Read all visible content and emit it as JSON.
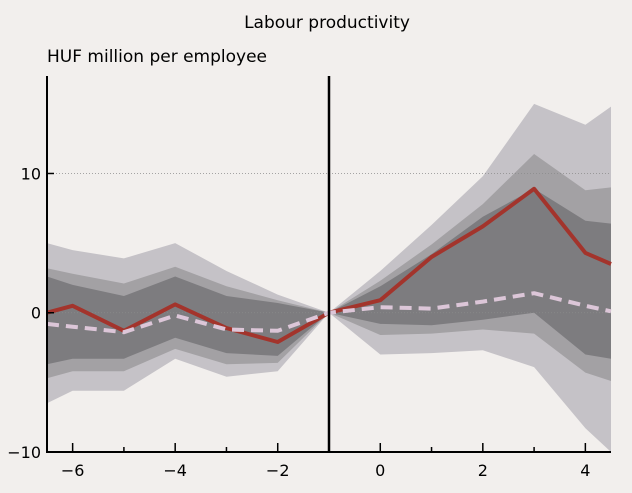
{
  "chart_data": {
    "type": "area",
    "title": "Labour productivity",
    "ylabel": "HUF million per employee",
    "xlabel": "",
    "xlim": [
      -6.5,
      4.5
    ],
    "ylim": [
      -10,
      17
    ],
    "x_ticks": [
      -6,
      -4,
      -2,
      0,
      2,
      4
    ],
    "y_ticks": [
      -10,
      0,
      10
    ],
    "gridlines_y": [
      10,
      0
    ],
    "event_line_x": -1,
    "x": [
      -6.5,
      -6,
      -5,
      -4,
      -3,
      -2,
      -1,
      0,
      1,
      2,
      3,
      4,
      4.5
    ],
    "bands": [
      {
        "lower": [
          -6.5,
          -5.6,
          -5.6,
          -3.3,
          -4.6,
          -4.2,
          0,
          -3.0,
          -2.9,
          -2.7,
          -3.9,
          -8.3,
          -10.0
        ],
        "upper": [
          5.0,
          4.5,
          3.9,
          5.0,
          3.0,
          1.3,
          0,
          3.0,
          6.3,
          9.8,
          15.0,
          13.5,
          14.8
        ]
      },
      {
        "lower": [
          -4.7,
          -4.2,
          -4.2,
          -2.6,
          -3.7,
          -3.6,
          0,
          -1.6,
          -1.5,
          -1.2,
          -1.5,
          -4.3,
          -4.9
        ],
        "upper": [
          3.2,
          2.8,
          2.1,
          3.3,
          1.9,
          0.9,
          0,
          2.3,
          4.9,
          7.8,
          11.4,
          8.8,
          9.0
        ]
      },
      {
        "lower": [
          -3.7,
          -3.3,
          -3.3,
          -1.8,
          -2.9,
          -3.1,
          0,
          -0.8,
          -0.9,
          -0.5,
          0.0,
          -3.0,
          -3.3
        ],
        "upper": [
          2.6,
          2.0,
          1.2,
          2.6,
          1.2,
          0.7,
          0,
          1.9,
          4.2,
          6.9,
          8.9,
          6.6,
          6.4
        ]
      }
    ],
    "series": [
      {
        "values": [
          0.0,
          0.5,
          -1.3,
          0.6,
          -1.1,
          -2.1,
          0.0,
          0.9,
          4.0,
          6.2,
          8.9,
          4.3,
          3.5
        ],
        "color": "#a3342c",
        "style": "solid"
      },
      {
        "values": [
          -0.8,
          -1.0,
          -1.4,
          -0.2,
          -1.2,
          -1.3,
          0.0,
          0.4,
          0.3,
          0.8,
          1.4,
          0.5,
          0.1
        ],
        "color": "#dcc6d8",
        "style": "dashed"
      }
    ],
    "colors": {
      "band_outer": "#c5c2c7",
      "band_mid": "#a3a1a4",
      "band_inner": "#7d7c7f",
      "background": "#f2efed"
    }
  }
}
